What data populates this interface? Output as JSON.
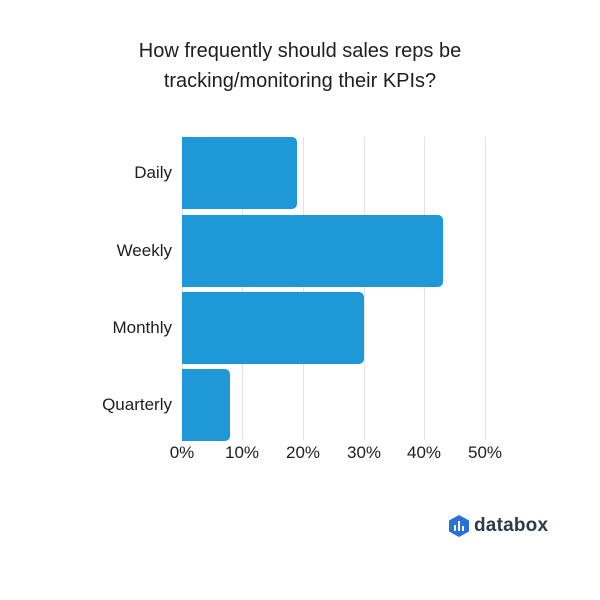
{
  "chart_data": {
    "type": "bar",
    "orientation": "horizontal",
    "title": "How frequently should sales reps be tracking/monitoring their KPIs?",
    "categories": [
      "Daily",
      "Weekly",
      "Monthly",
      "Quarterly"
    ],
    "values": [
      19,
      43,
      30,
      8
    ],
    "unit": "%",
    "xlabel": "",
    "ylabel": "",
    "xlim": [
      0,
      50
    ],
    "xticks": [
      "0%",
      "10%",
      "20%",
      "30%",
      "40%",
      "50%"
    ],
    "grid": true,
    "legend": null,
    "bar_color": "#1e98d6"
  },
  "title_lines": [
    "How frequently should sales reps be",
    "tracking/monitoring their KPIs?"
  ],
  "brand": {
    "name": "databox",
    "icon": "databox-logo-icon",
    "color": "#2c6fd6"
  }
}
